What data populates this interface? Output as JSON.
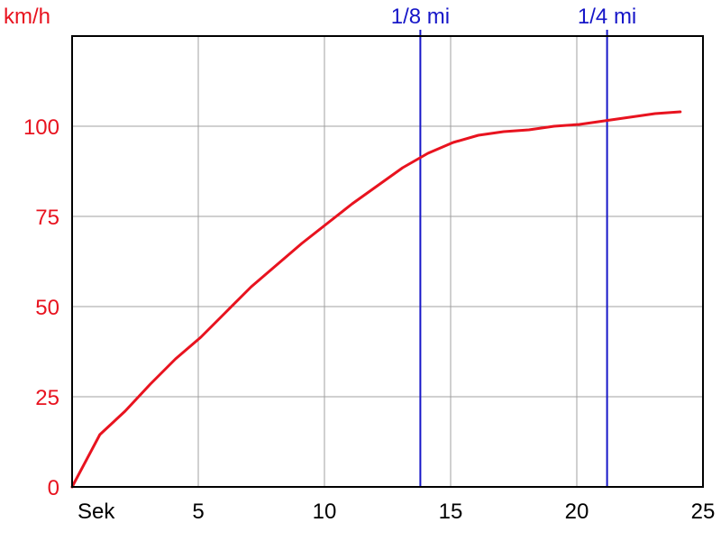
{
  "chart_data": {
    "type": "line",
    "title": "",
    "xlabel": "Sek",
    "ylabel": "km/h",
    "xlim": [
      0,
      25
    ],
    "ylim": [
      0,
      125
    ],
    "x_ticks": [
      5,
      10,
      15,
      20,
      25
    ],
    "y_ticks": [
      0,
      25,
      50,
      75,
      100
    ],
    "grid": true,
    "colors": {
      "line": "#e8131f",
      "markers": "#1616c8",
      "grid": "#a0a0a0",
      "axis": "#000000"
    },
    "series": [
      {
        "x": [
          0,
          1.1,
          2.1,
          3.1,
          4.1,
          5.1,
          6.1,
          7.1,
          8.1,
          9.1,
          10.1,
          11.1,
          12.1,
          13.1,
          14.1,
          15.1,
          16.1,
          17.1,
          18.1,
          19.1,
          20.1,
          21.1,
          22.1,
          23.1,
          24.1
        ],
        "values": [
          0,
          14.5,
          21,
          28.5,
          35.5,
          41.5,
          48.5,
          55.5,
          61.5,
          67.5,
          73,
          78.5,
          83.5,
          88.5,
          92.5,
          95.5,
          97.5,
          98.5,
          99,
          100,
          100.5,
          101.5,
          102.5,
          103.5,
          104
        ]
      }
    ],
    "markers": [
      {
        "label": "1/8 mi",
        "x": 13.8
      },
      {
        "label": "1/4 mi",
        "x": 21.2
      }
    ]
  }
}
